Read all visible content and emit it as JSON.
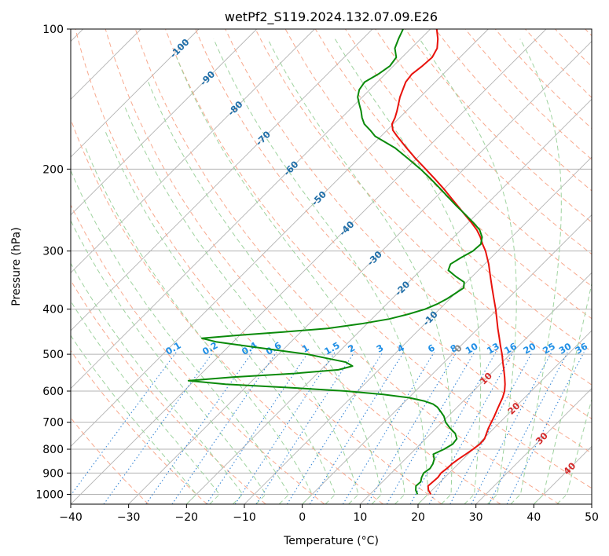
{
  "chart_data": {
    "type": "line",
    "title": "wetPf2_S119.2024.132.07.09.E26",
    "xlabel": "Temperature (°C)",
    "ylabel": "Pressure (hPa)",
    "xlim": [
      -40,
      50
    ],
    "ylim": [
      1050,
      100
    ],
    "y_scale": "log",
    "grid": true,
    "skew": true,
    "x_ticks": [
      "−40",
      "−30",
      "−20",
      "−10",
      "0",
      "10",
      "20",
      "30",
      "40",
      "50"
    ],
    "x_tick_values": [
      -40,
      -30,
      -20,
      -10,
      0,
      10,
      20,
      30,
      40,
      50
    ],
    "y_ticks": [
      "1000",
      "900",
      "800",
      "700",
      "600",
      "500",
      "400",
      "300",
      "200",
      "100"
    ],
    "y_tick_values": [
      1000,
      900,
      800,
      700,
      600,
      500,
      400,
      300,
      200,
      100
    ],
    "isotherm_labels": [
      {
        "text": "-100",
        "t": -100
      },
      {
        "text": "-90",
        "t": -90
      },
      {
        "text": "-80",
        "t": -80
      },
      {
        "text": "-70",
        "t": -70
      },
      {
        "text": "-60",
        "t": -60
      },
      {
        "text": "-50",
        "t": -50
      },
      {
        "text": "-40",
        "t": -40
      },
      {
        "text": "-30",
        "t": -30
      },
      {
        "text": "-20",
        "t": -20
      },
      {
        "text": "-10",
        "t": -10
      },
      {
        "text": "0",
        "t": 0
      },
      {
        "text": "10",
        "t": 10
      },
      {
        "text": "20",
        "t": 20
      },
      {
        "text": "30",
        "t": 30
      },
      {
        "text": "40",
        "t": 40
      }
    ],
    "mixing_ratio_labels": [
      "0.1",
      "0.2",
      "0.4",
      "0.6",
      "1",
      "1.5",
      "2",
      "3",
      "4",
      "6",
      "8",
      "10",
      "13",
      "16",
      "20",
      "25",
      "30",
      "36"
    ],
    "mixing_ratio_values": [
      0.1,
      0.2,
      0.4,
      0.6,
      1,
      1.5,
      2,
      3,
      4,
      6,
      8,
      10,
      13,
      16,
      20,
      25,
      30,
      36
    ],
    "colors": {
      "temperature": "#e8120c",
      "dewpoint": "#0a8a0a",
      "isotherm": "#b3b3b3",
      "dry_adiabat": "#f8a98e",
      "moist_adiabat": "#9fd39f",
      "mixing_ratio": "#3a88d6",
      "mixing_label": "#1f8fe6",
      "iso_label_cold": "#1f6ea8",
      "iso_label_zero": "#888888",
      "iso_label_warm": "#d42a2a"
    },
    "series": [
      {
        "name": "",
        "role": "temperature",
        "points": [
          [
            1000,
            20.5
          ],
          [
            980,
            19.4
          ],
          [
            960,
            18.6
          ],
          [
            940,
            18.7
          ],
          [
            920,
            18.8
          ],
          [
            900,
            18.6
          ],
          [
            880,
            18.8
          ],
          [
            860,
            18.9
          ],
          [
            840,
            19.2
          ],
          [
            820,
            19.6
          ],
          [
            800,
            20.0
          ],
          [
            780,
            20.3
          ],
          [
            760,
            20.2
          ],
          [
            740,
            19.6
          ],
          [
            720,
            19.0
          ],
          [
            700,
            18.5
          ],
          [
            680,
            18.0
          ],
          [
            660,
            17.4
          ],
          [
            640,
            16.8
          ],
          [
            620,
            16.2
          ],
          [
            600,
            15.4
          ],
          [
            580,
            14.3
          ],
          [
            560,
            13.0
          ],
          [
            540,
            11.6
          ],
          [
            520,
            10.1
          ],
          [
            500,
            8.6
          ],
          [
            480,
            6.9
          ],
          [
            460,
            5.2
          ],
          [
            440,
            3.4
          ],
          [
            420,
            1.6
          ],
          [
            400,
            -0.3
          ],
          [
            380,
            -2.4
          ],
          [
            360,
            -4.6
          ],
          [
            340,
            -6.9
          ],
          [
            320,
            -9.3
          ],
          [
            300,
            -12.1
          ],
          [
            290,
            -13.8
          ],
          [
            280,
            -15.4
          ],
          [
            270,
            -17.3
          ],
          [
            260,
            -19.6
          ],
          [
            250,
            -22.1
          ],
          [
            240,
            -24.7
          ],
          [
            230,
            -27.4
          ],
          [
            220,
            -30.2
          ],
          [
            210,
            -33.3
          ],
          [
            200,
            -36.6
          ],
          [
            190,
            -40.1
          ],
          [
            180,
            -43.6
          ],
          [
            170,
            -47.2
          ],
          [
            165,
            -49.0
          ],
          [
            160,
            -50.2
          ],
          [
            155,
            -50.8
          ],
          [
            150,
            -51.6
          ],
          [
            140,
            -53.5
          ],
          [
            130,
            -55.1
          ],
          [
            125,
            -55.4
          ],
          [
            120,
            -55.0
          ],
          [
            115,
            -54.8
          ],
          [
            110,
            -55.5
          ],
          [
            105,
            -57.0
          ],
          [
            100,
            -58.9
          ]
        ]
      },
      {
        "name": "",
        "role": "dewpoint",
        "points": [
          [
            1000,
            18.2
          ],
          [
            980,
            17.2
          ],
          [
            960,
            16.5
          ],
          [
            940,
            16.6
          ],
          [
            920,
            16.0
          ],
          [
            900,
            15.6
          ],
          [
            880,
            15.9
          ],
          [
            860,
            15.6
          ],
          [
            840,
            15.0
          ],
          [
            820,
            14.0
          ],
          [
            800,
            15.0
          ],
          [
            780,
            15.6
          ],
          [
            760,
            15.4
          ],
          [
            740,
            14.2
          ],
          [
            720,
            12.3
          ],
          [
            700,
            10.6
          ],
          [
            680,
            9.3
          ],
          [
            665,
            8.0
          ],
          [
            650,
            6.6
          ],
          [
            640,
            5.3
          ],
          [
            630,
            3.2
          ],
          [
            620,
            0.0
          ],
          [
            610,
            -5.0
          ],
          [
            600,
            -12.0
          ],
          [
            590,
            -22.0
          ],
          [
            580,
            -34.0
          ],
          [
            570,
            -41.0
          ],
          [
            560,
            -34.0
          ],
          [
            550,
            -24.0
          ],
          [
            540,
            -17.0
          ],
          [
            530,
            -15.2
          ],
          [
            520,
            -17.0
          ],
          [
            510,
            -21.0
          ],
          [
            500,
            -25.0
          ],
          [
            490,
            -31.0
          ],
          [
            480,
            -37.0
          ],
          [
            470,
            -43.0
          ],
          [
            462,
            -46.0
          ],
          [
            455,
            -40.0
          ],
          [
            448,
            -33.0
          ],
          [
            440,
            -26.0
          ],
          [
            430,
            -21.0
          ],
          [
            420,
            -17.0
          ],
          [
            410,
            -14.5
          ],
          [
            400,
            -12.5
          ],
          [
            390,
            -11.3
          ],
          [
            380,
            -10.5
          ],
          [
            370,
            -10.0
          ],
          [
            360,
            -9.5
          ],
          [
            350,
            -10.4
          ],
          [
            340,
            -12.9
          ],
          [
            330,
            -15.2
          ],
          [
            320,
            -15.9
          ],
          [
            310,
            -15.2
          ],
          [
            300,
            -14.3
          ],
          [
            290,
            -14.1
          ],
          [
            280,
            -15.1
          ],
          [
            270,
            -16.8
          ],
          [
            260,
            -19.3
          ],
          [
            250,
            -22.0
          ],
          [
            240,
            -24.9
          ],
          [
            230,
            -27.8
          ],
          [
            220,
            -30.8
          ],
          [
            210,
            -34.0
          ],
          [
            200,
            -37.5
          ],
          [
            190,
            -41.4
          ],
          [
            180,
            -45.6
          ],
          [
            170,
            -51.0
          ],
          [
            165,
            -52.9
          ],
          [
            160,
            -55.0
          ],
          [
            155,
            -56.5
          ],
          [
            150,
            -57.8
          ],
          [
            145,
            -59.3
          ],
          [
            140,
            -60.8
          ],
          [
            135,
            -61.8
          ],
          [
            130,
            -62.2
          ],
          [
            125,
            -61.2
          ],
          [
            120,
            -60.6
          ],
          [
            115,
            -61.0
          ],
          [
            110,
            -62.8
          ],
          [
            105,
            -63.8
          ],
          [
            100,
            -64.7
          ]
        ]
      }
    ]
  }
}
